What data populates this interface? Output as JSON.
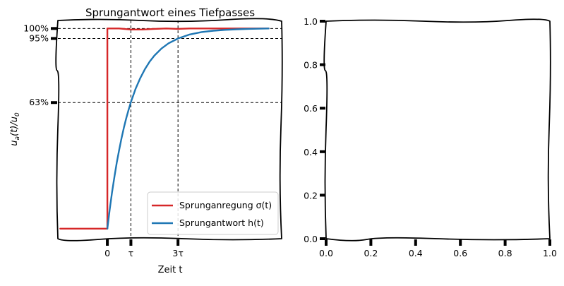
{
  "chart_data": [
    {
      "type": "line",
      "title": "Sprungantwort eines Tiefpasses",
      "xlabel": "Zeit t",
      "ylabel": "u_a(t)/u_0",
      "xlim": [
        -2.1,
        7.4
      ],
      "ylim": [
        -0.05,
        1.04
      ],
      "x_ticks": [
        {
          "value": 0,
          "label": "0"
        },
        {
          "value": 1,
          "label": "τ"
        },
        {
          "value": 3,
          "label": "3τ"
        }
      ],
      "y_ticks": [
        {
          "value": 0.63,
          "label": "63%"
        },
        {
          "value": 0.95,
          "label": "95%"
        },
        {
          "value": 1.0,
          "label": "100%"
        }
      ],
      "grid": true,
      "legend": "lower-right",
      "series": [
        {
          "name": "Sprunganregung σ(t)",
          "color": "#d62728",
          "x": [
            -2,
            -1.5,
            -1,
            -0.5,
            -0.05,
            0,
            0,
            0.5,
            1,
            1.5,
            2,
            2.5,
            3,
            3.5,
            4,
            4.5,
            5,
            5.5,
            6,
            6.5,
            6.85
          ],
          "y": [
            0,
            0,
            0,
            0,
            0,
            0,
            1,
            1,
            0.995,
            0.995,
            0.998,
            1,
            0.998,
            1,
            1,
            1,
            1,
            1,
            1,
            1,
            1
          ]
        },
        {
          "name": "Sprungantwort h(t)",
          "color": "#1f77b4",
          "x": [
            0,
            0.1,
            0.2,
            0.3,
            0.4,
            0.5,
            0.6,
            0.7,
            0.8,
            0.9,
            1,
            1.2,
            1.4,
            1.6,
            1.8,
            2,
            2.3,
            2.6,
            3,
            3.5,
            4,
            4.5,
            5,
            5.5,
            6,
            6.5,
            6.85
          ],
          "y": [
            0,
            0.095,
            0.181,
            0.259,
            0.33,
            0.393,
            0.451,
            0.503,
            0.551,
            0.593,
            0.632,
            0.699,
            0.753,
            0.798,
            0.835,
            0.865,
            0.9,
            0.926,
            0.95,
            0.97,
            0.982,
            0.989,
            0.993,
            0.996,
            0.998,
            0.999,
            1
          ]
        }
      ]
    },
    {
      "type": "line",
      "title": "",
      "xlabel": "",
      "ylabel": "",
      "xlim": [
        0,
        1
      ],
      "ylim": [
        0,
        1
      ],
      "x_ticks": [
        {
          "value": 0,
          "label": "0.0"
        },
        {
          "value": 0.2,
          "label": "0.2"
        },
        {
          "value": 0.4,
          "label": "0.4"
        },
        {
          "value": 0.6,
          "label": "0.6"
        },
        {
          "value": 0.8,
          "label": "0.8"
        },
        {
          "value": 1,
          "label": "1.0"
        }
      ],
      "y_ticks": [
        {
          "value": 0,
          "label": "0.0"
        },
        {
          "value": 0.2,
          "label": "0.2"
        },
        {
          "value": 0.4,
          "label": "0.4"
        },
        {
          "value": 0.6,
          "label": "0.6"
        },
        {
          "value": 0.8,
          "label": "0.8"
        },
        {
          "value": 1,
          "label": "1.0"
        }
      ],
      "grid": false,
      "series": []
    }
  ]
}
